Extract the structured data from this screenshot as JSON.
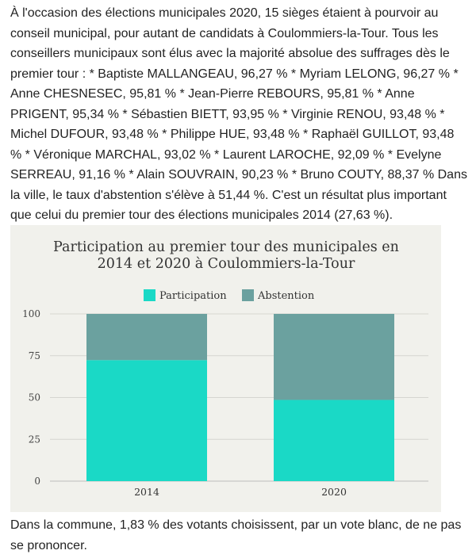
{
  "article": {
    "intro": "À l'occasion des élections municipales 2020, 15 sièges étaient à pourvoir au conseil municipal, pour autant de candidats à Coulommiers-la-Tour. Tous les conseillers municipaux sont élus avec la majorité absolue des suffrages dès le premier tour : * Baptiste MALLANGEAU, 96,27 % * Myriam LELONG, 96,27 % * Anne CHESNESEC, 95,81 % * Jean-Pierre REBOURS, 95,81 % * Anne PRIGENT, 95,34 % * Sébastien BIETT, 93,95 % * Virginie RENOU, 93,48 % * Michel DUFOUR, 93,48 % * Philippe HUE, 93,48 % * Raphaël GUILLOT, 93,48 % * Véronique MARCHAL, 93,02 % * Laurent LAROCHE, 92,09 % * Evelyne SERREAU, 91,16 % * Alain SOUVRAIN, 90,23 % * Bruno COUTY, 88,37 % Dans la ville, le taux d'abstention s'élève à 51,44 %. C'est un résultat plus important que celui du premier tour des élections municipales 2014 (27,63 %).",
    "outro": "Dans la commune, 1,83 % des votants choisissent, par un vote blanc, de ne pas se prononcer."
  },
  "chart_data": {
    "type": "bar",
    "stacked": true,
    "title_lines": [
      "Participation au premier tour des municipales en",
      "2014 et 2020 à Coulommiers-la-Tour"
    ],
    "categories": [
      "2014",
      "2020"
    ],
    "series": [
      {
        "name": "Participation",
        "color": "#1ad9c6",
        "values": [
          72.37,
          48.56
        ]
      },
      {
        "name": "Abstention",
        "color": "#6ba19f",
        "values": [
          27.63,
          51.44
        ]
      }
    ],
    "ylim": [
      0,
      100
    ],
    "yticks": [
      0,
      25,
      50,
      75,
      100
    ],
    "grid": true,
    "legend_position": "top-center",
    "xlabel": "",
    "ylabel": ""
  }
}
